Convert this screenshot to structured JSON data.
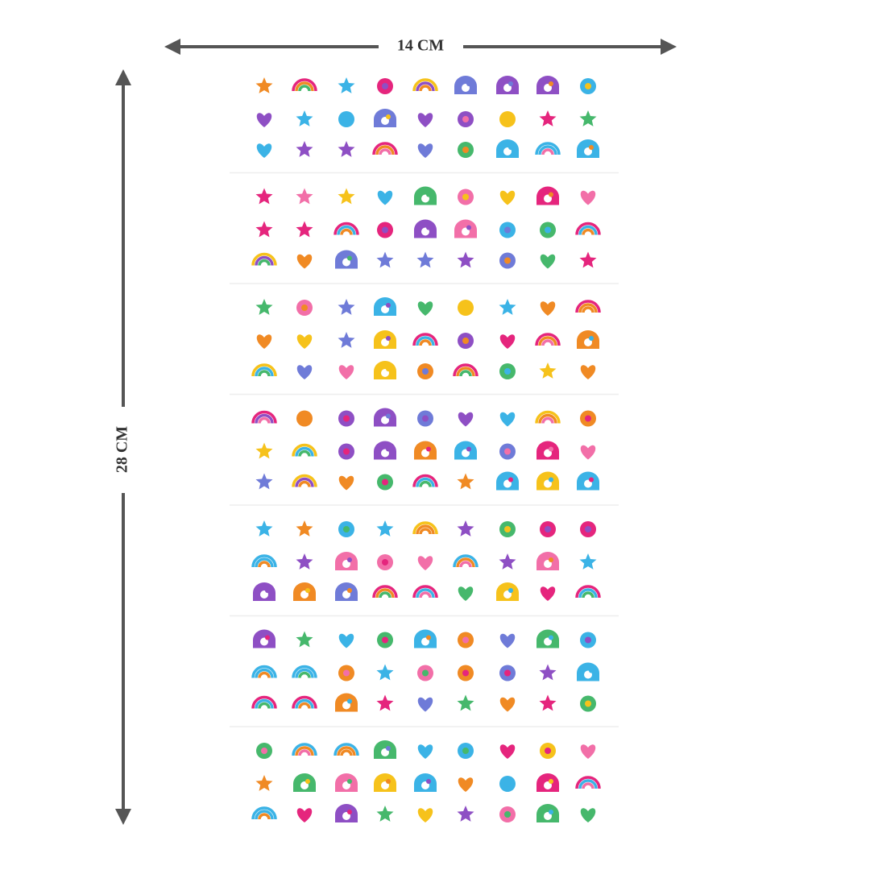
{
  "dimensions": {
    "width": "14 CM",
    "height": "28 CM"
  }
}
